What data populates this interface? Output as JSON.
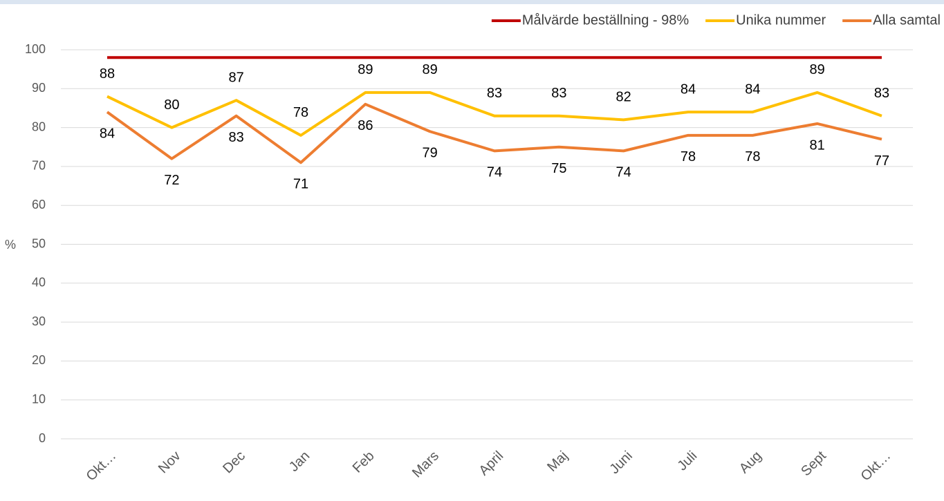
{
  "chart_data": {
    "type": "line",
    "categories": [
      "Okt…",
      "Nov",
      "Dec",
      "Jan",
      "Feb",
      "Mars",
      "April",
      "Maj",
      "Juni",
      "Juli",
      "Aug",
      "Sept",
      "Okt…"
    ],
    "series": [
      {
        "name": "Målvärde beställning - 98%",
        "color": "#c00000",
        "values": [
          98,
          98,
          98,
          98,
          98,
          98,
          98,
          98,
          98,
          98,
          98,
          98,
          98
        ],
        "labels": false
      },
      {
        "name": "Unika nummer",
        "color": "#ffc000",
        "values": [
          88,
          80,
          87,
          78,
          89,
          89,
          83,
          83,
          82,
          84,
          84,
          89,
          83
        ],
        "labels": "above"
      },
      {
        "name": "Alla samtal",
        "color": "#ed7d31",
        "values": [
          84,
          72,
          83,
          71,
          86,
          79,
          74,
          75,
          74,
          78,
          78,
          81,
          77
        ],
        "labels": "below"
      }
    ],
    "ylabel": "%",
    "ylim": [
      0,
      100
    ],
    "yticks": [
      0,
      10,
      20,
      30,
      40,
      50,
      60,
      70,
      80,
      90,
      100
    ],
    "grid": true,
    "legend": "top-right"
  }
}
